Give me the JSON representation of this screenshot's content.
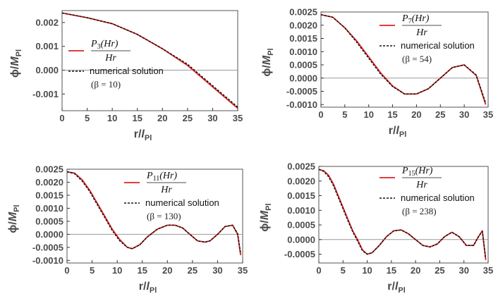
{
  "chart_data": [
    {
      "type": "line",
      "xlabel_main": "r/",
      "xlabel_symbol": "l",
      "xlabel_sub": "Pl",
      "ylabel_main": "ϕ/",
      "ylabel_symbol": "M",
      "ylabel_sub": "Pl",
      "xlim": [
        0,
        35
      ],
      "ylim": [
        -0.0017,
        0.0025
      ],
      "xticks": [
        0,
        5,
        10,
        15,
        20,
        25,
        30,
        35
      ],
      "yticks": [
        -0.001,
        0.0,
        0.001,
        0.002
      ],
      "ytick_labels": [
        "-0.001",
        "0.000",
        "0.001",
        "0.002"
      ],
      "legend": {
        "numerator": "P",
        "index": "3",
        "paren": "(Hr)",
        "denominator": "Hr",
        "numerical": "numerical solution",
        "beta": "(β = 10)"
      },
      "colors": {
        "analytic": "#dd2222",
        "numerical": "#111111"
      },
      "series": [
        {
          "name": "P3(Hr)/Hr",
          "style": "solid",
          "x": [
            0,
            5,
            10,
            15,
            20,
            25,
            30,
            35
          ],
          "y": [
            0.0024,
            0.0022,
            0.00195,
            0.0015,
            0.0009,
            0.0002,
            -0.0007,
            -0.0016
          ]
        },
        {
          "name": "numerical solution",
          "style": "dashed",
          "x": [
            0,
            5,
            10,
            15,
            20,
            25,
            30,
            35
          ],
          "y": [
            0.0024,
            0.0022,
            0.00195,
            0.0015,
            0.0009,
            0.00025,
            -0.00065,
            -0.00155
          ]
        }
      ]
    },
    {
      "type": "line",
      "xlabel_main": "r/",
      "xlabel_symbol": "l",
      "xlabel_sub": "Pl",
      "ylabel_main": "ϕ/",
      "ylabel_symbol": "M",
      "ylabel_sub": "Pl",
      "xlim": [
        0,
        35
      ],
      "ylim": [
        -0.0011,
        0.0025
      ],
      "xticks": [
        0,
        5,
        10,
        15,
        20,
        25,
        30,
        35
      ],
      "yticks": [
        -0.001,
        -0.0005,
        0.0,
        0.0005,
        0.001,
        0.0015,
        0.002,
        0.0025
      ],
      "ytick_labels": [
        "-0.0010",
        "-0.0005",
        "0.0000",
        "0.0005",
        "0.0010",
        "0.0015",
        "0.0020",
        "0.0025"
      ],
      "legend": {
        "numerator": "P",
        "index": "7",
        "paren": "(Hr)",
        "denominator": "Hr",
        "numerical": "numerical solution",
        "beta": "(β = 54)"
      },
      "colors": {
        "analytic": "#dd2222",
        "numerical": "#111111"
      },
      "series": [
        {
          "name": "P7(Hr)/Hr",
          "style": "solid",
          "x": [
            0,
            2.5,
            5,
            7.5,
            10,
            12.5,
            15,
            17.5,
            20,
            22.5,
            25,
            27.5,
            30,
            32.5,
            34.5
          ],
          "y": [
            0.0024,
            0.0023,
            0.0019,
            0.0014,
            0.0008,
            0.0002,
            -0.0003,
            -0.0006,
            -0.0006,
            -0.0004,
            0.0,
            0.0004,
            0.0005,
            0.0001,
            -0.001
          ]
        },
        {
          "name": "numerical solution",
          "style": "dashed",
          "x": [
            0,
            2.5,
            5,
            7.5,
            10,
            12.5,
            15,
            17.5,
            20,
            22.5,
            25,
            27.5,
            30,
            32.5,
            34.5
          ],
          "y": [
            0.0024,
            0.0023,
            0.0019,
            0.00135,
            0.00075,
            0.00015,
            -0.00032,
            -0.0006,
            -0.0006,
            -0.0004,
            0.0,
            0.0004,
            0.0005,
            0.00012,
            -0.00095
          ]
        }
      ]
    },
    {
      "type": "line",
      "xlabel_main": "r/",
      "xlabel_symbol": "l",
      "xlabel_sub": "Pl",
      "ylabel_main": "ϕ/",
      "ylabel_symbol": "M",
      "ylabel_sub": "Pl",
      "xlim": [
        0,
        35
      ],
      "ylim": [
        -0.0011,
        0.0025
      ],
      "xticks": [
        0,
        5,
        10,
        15,
        20,
        25,
        30,
        35
      ],
      "yticks": [
        -0.001,
        -0.0005,
        0.0,
        0.0005,
        0.001,
        0.0015,
        0.002,
        0.0025
      ],
      "ytick_labels": [
        "-0.0010",
        "-0.0005",
        "0.0000",
        "0.0005",
        "0.0010",
        "0.0015",
        "0.0020",
        "0.0025"
      ],
      "legend": {
        "numerator": "P",
        "index": "11",
        "paren": "(Hr)",
        "denominator": "Hr",
        "numerical": "numerical solution",
        "beta": "(β = 130)"
      },
      "colors": {
        "analytic": "#dd2222",
        "numerical": "#111111"
      },
      "series": [
        {
          "name": "P11(Hr)/Hr",
          "style": "solid",
          "x": [
            0,
            1.5,
            3,
            4.5,
            6,
            7.5,
            9,
            10.5,
            12,
            13,
            14.5,
            16,
            18,
            20,
            21.5,
            23,
            24.5,
            26,
            27.5,
            28.5,
            30,
            31.5,
            33,
            34,
            34.6
          ],
          "y": [
            0.0024,
            0.00235,
            0.0021,
            0.0017,
            0.0012,
            0.0007,
            0.0002,
            -0.0002,
            -0.0005,
            -0.00055,
            -0.0004,
            -0.0001,
            0.0002,
            0.00035,
            0.00035,
            0.00025,
            0.0,
            -0.00025,
            -0.0003,
            -0.00025,
            0.0,
            0.0003,
            0.00035,
            0.0,
            -0.0008
          ]
        },
        {
          "name": "numerical solution",
          "style": "dashed",
          "x": [
            0,
            1.5,
            3,
            4.5,
            6,
            7.5,
            9,
            10.5,
            12,
            13,
            14.5,
            16,
            18,
            20,
            21.5,
            23,
            24.5,
            26,
            27.5,
            28.5,
            30,
            31.5,
            33,
            34,
            34.6
          ],
          "y": [
            0.0024,
            0.00233,
            0.00205,
            0.00165,
            0.00115,
            0.00065,
            0.00015,
            -0.00025,
            -0.0005,
            -0.00055,
            -0.0004,
            -0.0001,
            0.0002,
            0.00035,
            0.00035,
            0.00025,
            0.0,
            -0.00025,
            -0.0003,
            -0.00025,
            0.0,
            0.0003,
            0.00035,
            3e-05,
            -0.00075
          ]
        }
      ]
    },
    {
      "type": "line",
      "xlabel_main": "r/",
      "xlabel_symbol": "l",
      "xlabel_sub": "Pl",
      "ylabel_main": "ϕ/",
      "ylabel_symbol": "M",
      "ylabel_sub": "Pl",
      "xlim": [
        0,
        35
      ],
      "ylim": [
        -0.0008,
        0.0025
      ],
      "xticks": [
        0,
        5,
        10,
        15,
        20,
        25,
        30,
        35
      ],
      "yticks": [
        -0.0005,
        0.0,
        0.0005,
        0.001,
        0.0015,
        0.002,
        0.0025
      ],
      "ytick_labels": [
        "-0.0005",
        "0.0000",
        "0.0005",
        "0.0010",
        "0.0015",
        "0.0020",
        "0.0025"
      ],
      "legend": {
        "numerator": "P",
        "index": "15",
        "paren": "(Hr)",
        "denominator": "Hr",
        "numerical": "numerical solution",
        "beta": "(β = 238)"
      },
      "colors": {
        "analytic": "#dd2222",
        "numerical": "#111111"
      },
      "series": [
        {
          "name": "P15(Hr)/Hr",
          "style": "solid",
          "x": [
            0,
            1,
            2,
            3,
            4,
            5,
            6,
            7,
            8,
            9,
            10,
            11,
            12.5,
            14,
            15.5,
            17,
            18.5,
            20,
            21.5,
            23,
            24.5,
            26,
            27.5,
            29,
            30.5,
            32,
            33,
            33.8,
            34.5
          ],
          "y": [
            0.0024,
            0.00235,
            0.0022,
            0.0019,
            0.0015,
            0.0011,
            0.0007,
            0.0003,
            0.0,
            -0.00035,
            -0.0005,
            -0.00045,
            -0.0002,
            0.0001,
            0.0003,
            0.00033,
            0.0002,
            0.0,
            -0.0002,
            -0.00025,
            -0.00015,
            0.0001,
            0.00025,
            0.0001,
            -0.0002,
            -0.0002,
            0.0001,
            0.0003,
            -0.0007
          ]
        },
        {
          "name": "numerical solution",
          "style": "dashed",
          "x": [
            0,
            1,
            2,
            3,
            4,
            5,
            6,
            7,
            8,
            9,
            10,
            11,
            12.5,
            14,
            15.5,
            17,
            18.5,
            20,
            21.5,
            23,
            24.5,
            26,
            27.5,
            29,
            30.5,
            32,
            33,
            33.8,
            34.5
          ],
          "y": [
            0.0024,
            0.00233,
            0.00215,
            0.00185,
            0.00145,
            0.00105,
            0.00065,
            0.00027,
            -5e-05,
            -0.00038,
            -0.0005,
            -0.00045,
            -0.0002,
            0.0001,
            0.0003,
            0.00033,
            0.0002,
            0.0,
            -0.0002,
            -0.00025,
            -0.00015,
            0.0001,
            0.00025,
            0.0001,
            -0.0002,
            -0.0002,
            0.0001,
            0.00028,
            -0.00065
          ]
        }
      ]
    }
  ]
}
